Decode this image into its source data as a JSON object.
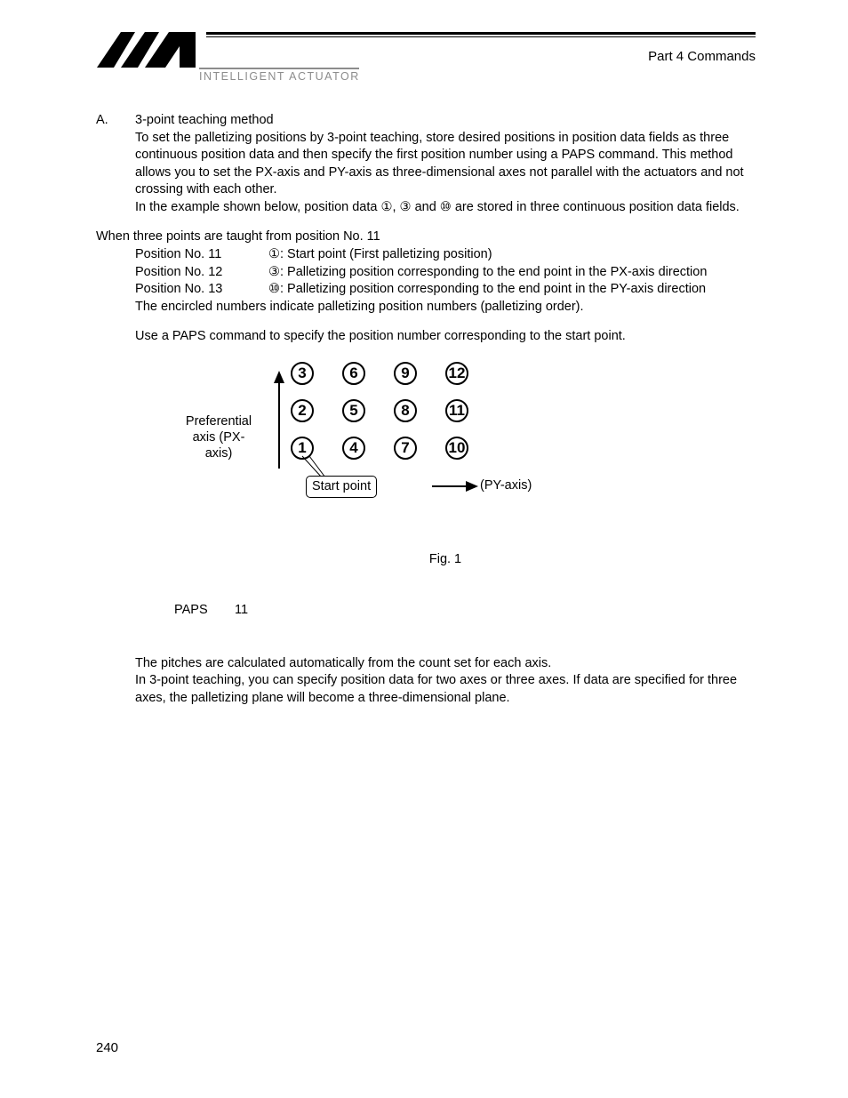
{
  "header": {
    "breadcrumb": "Part 4   Commands",
    "subbrand": "INTELLIGENT ACTUATOR",
    "logo_color": "#000000",
    "rule_color_dark": "#000000",
    "rule_color_light": "#8c8c8c"
  },
  "section": {
    "label": "A.",
    "title": "3-point teaching method",
    "body1": "To set the palletizing positions by 3-point teaching, store desired positions in position data fields as three continuous position data and then specify the first position number using a PAPS command. This method allows you to set the PX-axis and PY-axis as three-dimensional axes not parallel with the actuators and not crossing with each other.",
    "body2_pre": "In the example shown below, position data ",
    "body2_g1": "①",
    "body2_mid1": ", ",
    "body2_g2": "③",
    "body2_mid2": " and ",
    "body2_g3": "⑩",
    "body2_post": " are stored in three continuous position data fields."
  },
  "teach": {
    "intro": "When three points are taught from position No. 11",
    "rows": [
      {
        "pos": "Position No. 11",
        "glyph": "①",
        "desc": ": Start point (First palletizing position)"
      },
      {
        "pos": "Position No. 12",
        "glyph": "③",
        "desc": ": Palletizing position corresponding to the end point in the PX-axis direction"
      },
      {
        "pos": "Position No. 13",
        "glyph": "⑩",
        "desc": ": Palletizing position corresponding to the end point in the PY-axis direction"
      }
    ],
    "note": "The encircled numbers indicate palletizing position numbers (palletizing order).",
    "use_paps": "Use a PAPS command to specify the position number corresponding to the start point."
  },
  "figure": {
    "pref_label_l1": "Preferential",
    "pref_label_l2": "axis (PX-",
    "pref_label_l3": "axis)",
    "py_label": "(PY-axis)",
    "start_label": "Start point",
    "caption": "Fig. 1",
    "col_spacing": 58,
    "row_spacing": 42,
    "circle_r": 12,
    "circle_stroke": "#000000",
    "circle_stroke_w": 2,
    "grid": {
      "cols": 4,
      "rows": 3,
      "values": [
        [
          "3",
          "6",
          "9",
          "12"
        ],
        [
          "2",
          "5",
          "8",
          "11"
        ],
        [
          "1",
          "4",
          "7",
          "10"
        ]
      ]
    }
  },
  "command": {
    "name": "PAPS",
    "value": "11"
  },
  "tail": {
    "p1": "The pitches are calculated automatically from the count set for each axis.",
    "p2": "In 3-point teaching, you can specify position data for two axes or three axes. If data are specified for three axes, the palletizing plane will become a three-dimensional plane."
  },
  "page_number": "240"
}
